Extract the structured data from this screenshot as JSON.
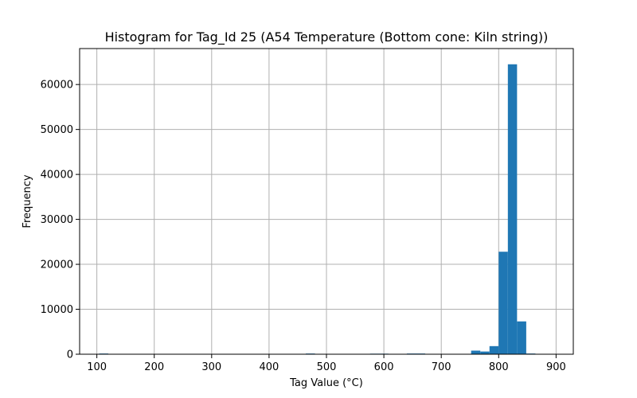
{
  "chart_data": {
    "type": "bar",
    "title": "Histogram for Tag_Id 25 (A54 Temperature (Bottom cone: Kiln string))",
    "xlabel": "Tag Value (°C)",
    "ylabel": "Frequency",
    "xlim": [
      70,
      930
    ],
    "ylim": [
      0,
      68000
    ],
    "grid": true,
    "color": "#1f77b4",
    "x_ticks": [
      100,
      200,
      300,
      400,
      500,
      600,
      700,
      800,
      900
    ],
    "y_ticks": [
      0,
      10000,
      20000,
      30000,
      40000,
      50000,
      60000
    ],
    "bin_width": 16,
    "bins": [
      {
        "x_start": 104,
        "value": 150
      },
      {
        "x_start": 464,
        "value": 150
      },
      {
        "x_start": 576,
        "value": 120
      },
      {
        "x_start": 592,
        "value": 120
      },
      {
        "x_start": 640,
        "value": 150
      },
      {
        "x_start": 656,
        "value": 150
      },
      {
        "x_start": 752,
        "value": 800
      },
      {
        "x_start": 768,
        "value": 600
      },
      {
        "x_start": 784,
        "value": 1800
      },
      {
        "x_start": 800,
        "value": 22800
      },
      {
        "x_start": 816,
        "value": 64500
      },
      {
        "x_start": 832,
        "value": 7300
      },
      {
        "x_start": 848,
        "value": 150
      }
    ]
  }
}
